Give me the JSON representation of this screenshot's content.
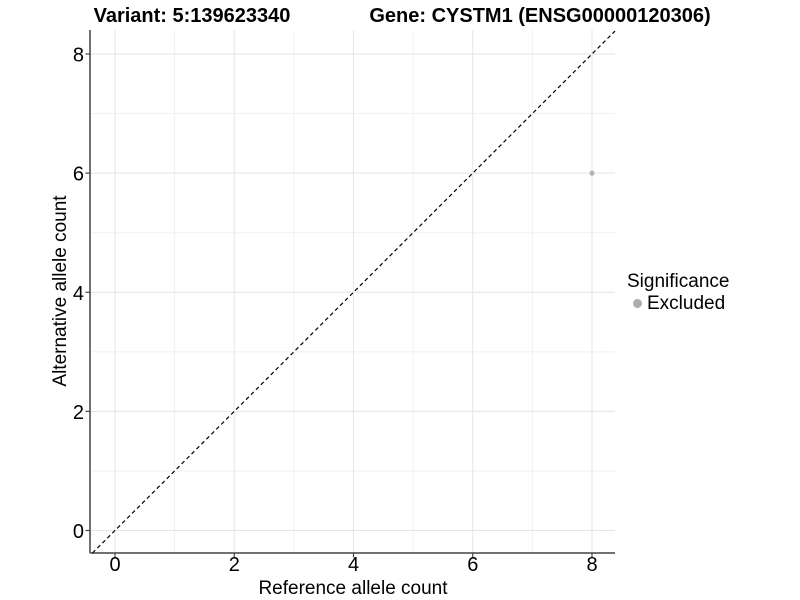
{
  "titles": {
    "variant": "Variant: 5:139623340",
    "gene": "Gene: CYSTM1 (ENSG00000120306)"
  },
  "chart_data": {
    "type": "scatter",
    "title": "Variant: 5:139623340    Gene: CYSTM1 (ENSG00000120306)",
    "xlabel": "Reference allele count",
    "ylabel": "Alternative allele count",
    "xlim": [
      -0.42,
      8.42
    ],
    "ylim": [
      -0.42,
      8.42
    ],
    "xticks": [
      0,
      2,
      4,
      6,
      8
    ],
    "yticks": [
      0,
      2,
      4,
      6,
      8
    ],
    "xticks_minor": [
      1,
      3,
      5,
      7
    ],
    "yticks_minor": [
      1,
      3,
      5,
      7
    ],
    "grid": "major+minor",
    "series": [
      {
        "name": "Excluded",
        "points": [
          {
            "x": 8,
            "y": 6
          }
        ]
      }
    ],
    "reference_line": {
      "type": "identity",
      "style": "dashed",
      "color": "#000000"
    },
    "legend": {
      "position": "right",
      "title": "Significance",
      "items": [
        {
          "label": "Excluded",
          "color": "#adadad"
        }
      ]
    },
    "colors": {
      "point": "#b3b3b3",
      "major_grid": "#e5e5e5",
      "minor_grid": "#f1f1f1",
      "axis_line": "#444444",
      "tick_text": "#000000"
    }
  }
}
